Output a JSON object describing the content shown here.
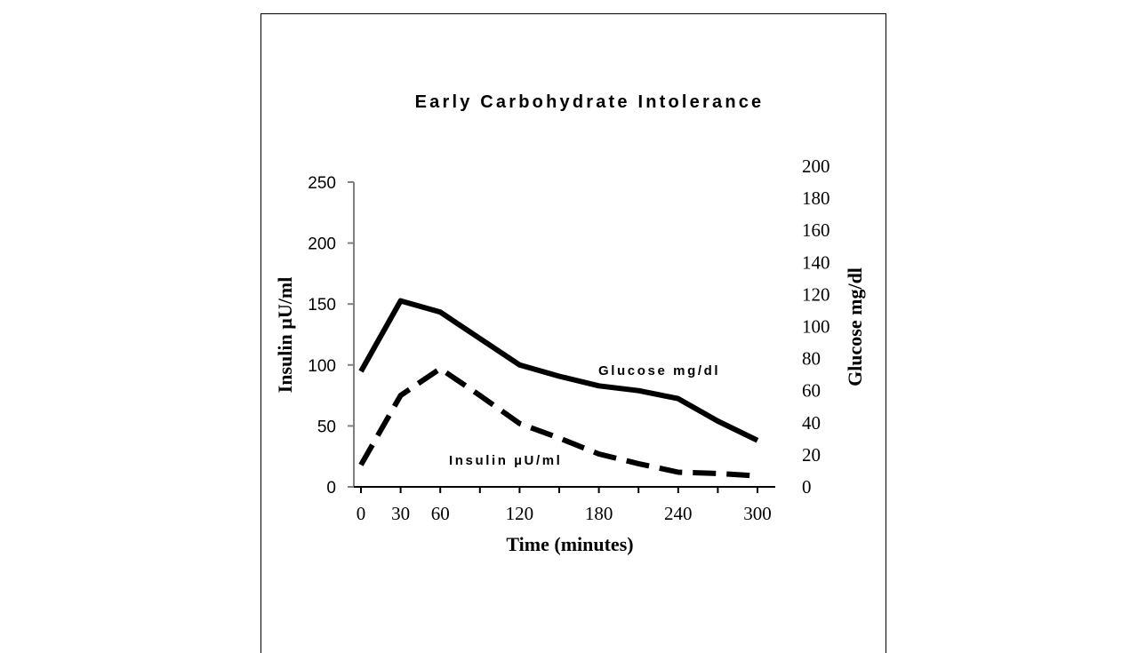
{
  "chart_data": {
    "type": "line",
    "title": "Early Carbohydrate Intolerance",
    "xlabel": "Time (minutes)",
    "ylabel_left": "Insulin µU/ml",
    "ylabel_right": "Glucose mg/dl",
    "x_ticks": [
      0,
      30,
      60,
      120,
      180,
      240,
      300
    ],
    "ylim_left": [
      0,
      250
    ],
    "yticks_left": [
      0,
      50,
      100,
      150,
      200,
      250
    ],
    "ylim_right": [
      0,
      200
    ],
    "yticks_right": [
      0,
      20,
      40,
      60,
      80,
      100,
      120,
      140,
      160,
      180,
      200
    ],
    "grid": false,
    "series": [
      {
        "name": "Glucose mg/dl",
        "axis": "right",
        "style": "solid",
        "color": "#000000",
        "x": [
          0,
          30,
          60,
          120,
          150,
          180,
          210,
          240,
          270,
          300
        ],
        "y": [
          72,
          116,
          109,
          76,
          69,
          63,
          60,
          55,
          41,
          29
        ]
      },
      {
        "name": "Insulin µU/ml",
        "axis": "left",
        "style": "dashed",
        "color": "#000000",
        "x": [
          0,
          30,
          60,
          90,
          120,
          150,
          180,
          210,
          240,
          270,
          300
        ],
        "y": [
          18,
          75,
          97,
          75,
          52,
          40,
          27,
          19,
          12,
          11,
          9
        ]
      }
    ]
  }
}
